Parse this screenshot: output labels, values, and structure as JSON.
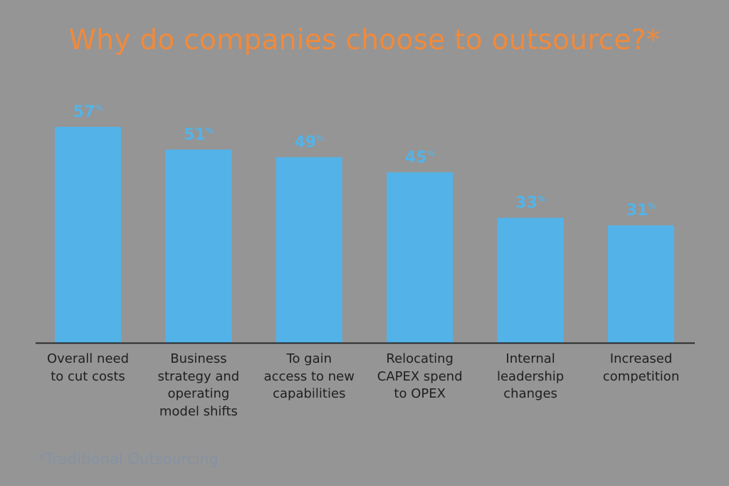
{
  "title": "Why do companies choose to outsource?*",
  "footnote": "*Traditional Outsourcing",
  "colors": {
    "background": "#959595",
    "bar": "#53b3e8",
    "title": "#f08a3c",
    "axis": "#2a2a2a"
  },
  "chart_data": {
    "type": "bar",
    "title": "Why do companies choose to outsource?*",
    "categories": [
      "Overall need to cut costs",
      "Business strategy and operating model shifts",
      "To gain access to new capabilities",
      "Relocating CAPEX spend to OPEX",
      "Internal leadership changes",
      "Increased competition"
    ],
    "category_lines": [
      [
        "Overall need",
        "to cut costs"
      ],
      [
        "Business",
        "strategy and",
        "operating",
        "model shifts"
      ],
      [
        "To gain",
        "access to new",
        "capabilities"
      ],
      [
        "Relocating",
        "CAPEX spend",
        "to OPEX"
      ],
      [
        "Internal",
        "leadership",
        "changes"
      ],
      [
        "Increased",
        "competition"
      ]
    ],
    "values": [
      57,
      51,
      49,
      45,
      33,
      31
    ],
    "data_labels": [
      "57",
      "51",
      "49",
      "45",
      "33",
      "31"
    ],
    "unit": "%",
    "xlabel": "",
    "ylabel": "",
    "grid": false
  }
}
